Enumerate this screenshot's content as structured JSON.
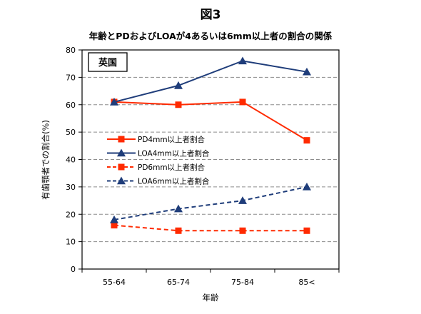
{
  "figure_label": "図3",
  "chart_data": {
    "type": "line",
    "title": "年齢とPDおよびLOAが4あるいは6mm以上者の割合の関係",
    "subtitle": "英国",
    "xlabel": "年齢",
    "ylabel": "有歯顎者での割合(%)",
    "categories": [
      "55-64",
      "65-74",
      "75-84",
      "85<"
    ],
    "ylim": [
      0,
      80
    ],
    "yticks": [
      0,
      10,
      20,
      30,
      40,
      50,
      60,
      70,
      80
    ],
    "grid": "horizontal-dashed",
    "legend_position": "center-left",
    "series": [
      {
        "name": "PD4mm以上者割合",
        "values": [
          61,
          60,
          61,
          47
        ],
        "color": "#ff2a00",
        "marker": "square",
        "dash": "solid"
      },
      {
        "name": "LOA4mm以上者割合",
        "values": [
          61,
          67,
          76,
          72
        ],
        "color": "#1f3d7a",
        "marker": "triangle",
        "dash": "solid"
      },
      {
        "name": "PD6mm以上者割合",
        "values": [
          16,
          14,
          14,
          14
        ],
        "color": "#ff2a00",
        "marker": "square",
        "dash": "dashed"
      },
      {
        "name": "LOA6mm以上者割合",
        "values": [
          18,
          22,
          25,
          30
        ],
        "color": "#1f3d7a",
        "marker": "triangle",
        "dash": "dashed"
      }
    ]
  }
}
